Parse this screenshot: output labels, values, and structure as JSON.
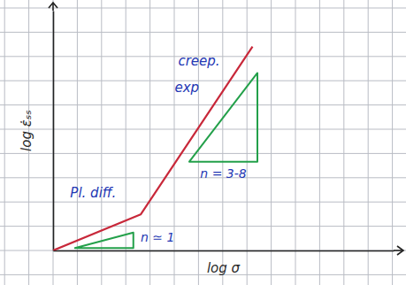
{
  "chart_data": {
    "type": "line",
    "x_label": "log σ",
    "y_label": "log ε̇ₛₛ",
    "x": [
      0,
      3.6,
      8.2
    ],
    "values": [
      0,
      1.5,
      8.5
    ],
    "color": "#c8283a",
    "xlim": [
      0,
      14
    ],
    "ylim": [
      0,
      10
    ],
    "tick_labels": false,
    "slope_triangles": [
      {
        "x": [
          0.9,
          3.3,
          3.3
        ],
        "y": [
          0.1,
          0.75,
          0.1
        ],
        "label": "n ≃ 1",
        "label_x": 4.3,
        "label_y": 0.55,
        "color": "#23a04a"
      },
      {
        "x": [
          5.6,
          8.4,
          8.4
        ],
        "y": [
          3.7,
          7.4,
          3.7
        ],
        "label": "n = 3-8",
        "label_x": 7.0,
        "label_y": 3.2,
        "color": "#23a04a"
      }
    ],
    "annotations": [
      {
        "text": "Pl. diff.",
        "x": 1.65,
        "y": 2.4,
        "color": "#2438b4"
      },
      {
        "text": "creep.",
        "x": 6.0,
        "y": 7.9,
        "color": "#2438b4"
      },
      {
        "text": "exp",
        "x": 5.5,
        "y": 6.8,
        "color": "#2438b4"
      }
    ]
  }
}
